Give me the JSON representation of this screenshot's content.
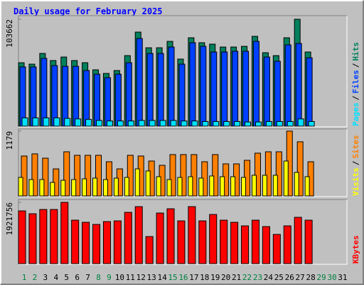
{
  "chart_data": [
    {
      "type": "bar",
      "title": "Daily usage for February 2025",
      "categories": [
        "1",
        "2",
        "3",
        "4",
        "5",
        "6",
        "7",
        "8",
        "9",
        "10",
        "11",
        "12",
        "13",
        "14",
        "15",
        "16",
        "17",
        "18",
        "19",
        "20",
        "21",
        "22",
        "23",
        "24",
        "25",
        "26",
        "27",
        "28",
        "29",
        "30",
        "31"
      ],
      "category_colors": [
        "#008040",
        "#008040",
        "#000000",
        "#000000",
        "#000000",
        "#000000",
        "#000000",
        "#008040",
        "#008040",
        "#000000",
        "#000000",
        "#000000",
        "#000000",
        "#000000",
        "#008040",
        "#008040",
        "#000000",
        "#000000",
        "#000000",
        "#000000",
        "#000000",
        "#008040",
        "#008040",
        "#000000",
        "#000000",
        "#000000",
        "#000000",
        "#000000",
        "#008040",
        "#008040",
        "#000000"
      ],
      "legend_separator": "/",
      "ylim": [
        0,
        103662
      ],
      "yticks": [
        103662
      ],
      "series": [
        {
          "name": "Hits",
          "color": "#00805c",
          "values": [
            61500,
            60100,
            70500,
            63600,
            67000,
            63600,
            61500,
            54600,
            51100,
            53900,
            68400,
            91200,
            76000,
            76000,
            82200,
            65000,
            85700,
            80900,
            79500,
            76700,
            76700,
            77400,
            87100,
            71200,
            68400,
            85700,
            103662,
            71900,
            null,
            null,
            null
          ]
        },
        {
          "name": "Files",
          "color": "#0040ff",
          "values": [
            57400,
            57400,
            65700,
            58700,
            58000,
            58000,
            53900,
            50400,
            47000,
            50400,
            61500,
            85000,
            70500,
            70500,
            76700,
            60100,
            80900,
            77400,
            71900,
            71900,
            72600,
            72600,
            82200,
            67000,
            62900,
            78800,
            80200,
            66300,
            null,
            null,
            null
          ]
        },
        {
          "name": "Pages",
          "color": "#00e0ff",
          "values": [
            8000,
            8000,
            8000,
            8000,
            7500,
            7000,
            6500,
            5500,
            5000,
            5000,
            5000,
            5500,
            5500,
            5500,
            5500,
            5000,
            5000,
            4500,
            4500,
            4500,
            4500,
            4000,
            4000,
            4500,
            4500,
            4500,
            7000,
            4500,
            null,
            null,
            null
          ]
        }
      ]
    },
    {
      "type": "bar",
      "ylim": [
        0,
        1179
      ],
      "yticks": [
        1179
      ],
      "series": [
        {
          "name": "Sites",
          "color": "#ff8000",
          "values": [
            726,
            765,
            687,
            492,
            803,
            739,
            739,
            739,
            622,
            492,
            739,
            726,
            635,
            557,
            752,
            752,
            752,
            622,
            752,
            583,
            583,
            648,
            778,
            803,
            803,
            1179,
            985,
            622,
            null,
            null,
            null
          ]
        },
        {
          "name": "Visits",
          "color": "#ffff00",
          "values": [
            337,
            298,
            298,
            246,
            285,
            298,
            311,
            324,
            298,
            324,
            337,
            492,
            454,
            350,
            298,
            337,
            350,
            324,
            363,
            350,
            350,
            337,
            376,
            376,
            376,
            635,
            428,
            350,
            null,
            null,
            null
          ]
        }
      ]
    },
    {
      "type": "bar",
      "ylim": [
        0,
        1921756
      ],
      "yticks": [
        1921756
      ],
      "series": [
        {
          "name": "KBytes",
          "color": "#ff0000",
          "values": [
            1653600,
            1564200,
            1698300,
            1698300,
            1921756,
            1363100,
            1296100,
            1229000,
            1318400,
            1340800,
            1608900,
            1787700,
            849100,
            1586600,
            1720600,
            1340800,
            1787700,
            1340800,
            1541900,
            1363100,
            1296100,
            1184300,
            1363100,
            1162000,
            916200,
            1184300,
            1452500,
            1363100,
            null,
            null,
            null
          ]
        }
      ]
    }
  ]
}
